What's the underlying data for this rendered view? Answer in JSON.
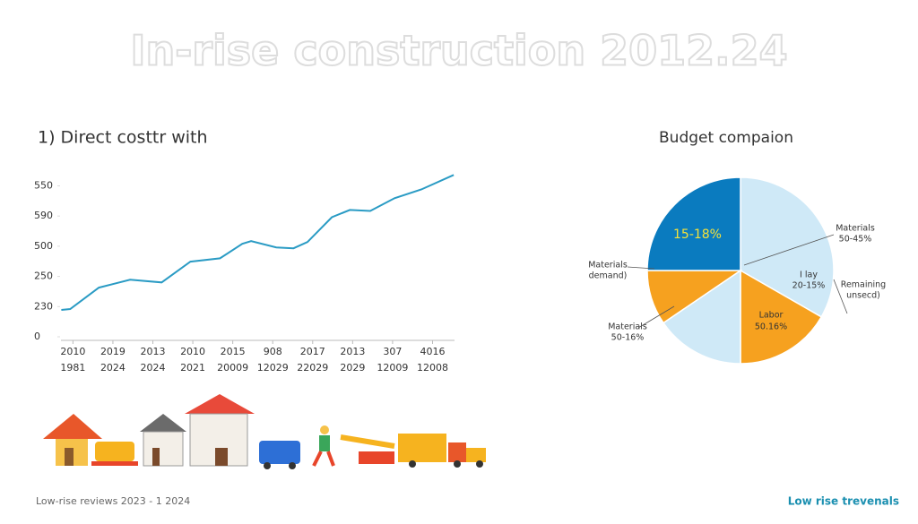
{
  "title": "In-rise construction 2012.24",
  "footer_left": "Low-rise reviews 2023 - 1 2024",
  "footer_right": "Low rise trevenals",
  "chart_data": [
    {
      "type": "line",
      "title": "1) Direct costtr with",
      "color": "#2a9bc4",
      "x": [
        -0.29,
        -0.07,
        0.65,
        1.43,
        2.22,
        2.94,
        3.68,
        4.24,
        4.46,
        5.09,
        5.52,
        5.87,
        6.48,
        6.93,
        7.44,
        8.05,
        8.72,
        9.53
      ],
      "values": [
        89,
        92,
        163,
        189,
        180,
        249,
        260,
        308,
        317,
        296,
        293,
        314,
        396,
        420,
        417,
        459,
        488,
        536
      ],
      "xlim": [
        -0.3,
        9.55
      ],
      "ylim": [
        0,
        540
      ],
      "xticks": [
        {
          "value": 0,
          "label": "2010",
          "label2": "1981"
        },
        {
          "value": 1,
          "label": "2019",
          "label2": "2024"
        },
        {
          "value": 2,
          "label": "2013",
          "label2": "2024"
        },
        {
          "value": 3,
          "label": "2010",
          "label2": "2021"
        },
        {
          "value": 4,
          "label": "2015",
          "label2": "20009"
        },
        {
          "value": 5,
          "label": "908",
          "label2": "12029"
        },
        {
          "value": 6,
          "label": "2017",
          "label2": "22029"
        },
        {
          "value": 7,
          "label": "2013",
          "label2": "2029"
        },
        {
          "value": 8,
          "label": "307",
          "label2": "12009"
        },
        {
          "value": 9,
          "label": "4016",
          "label2": "12008"
        }
      ],
      "yticks": [
        0,
        {
          "value": 100,
          "label": "230"
        },
        {
          "value": 200,
          "label": "250"
        },
        {
          "value": 300,
          "label": "500"
        },
        {
          "value": 400,
          "label": "590"
        },
        {
          "value": 500,
          "label": "550"
        }
      ]
    },
    {
      "type": "pie",
      "title": "Budget compaion",
      "values": [
        33.3,
        16.7,
        15.5,
        9.5,
        25
      ],
      "colors": [
        "#cfe9f7",
        "#f6a11f",
        "#cfe9f7",
        "#f6a11f",
        "#0a7bbf"
      ],
      "annotations": [
        [
          "15-18%"
        ],
        [
          "Labor",
          "50.16%"
        ],
        [
          "I lay",
          "20-15%"
        ],
        [
          "Materials",
          "50-45%"
        ],
        [
          "Materials",
          "demand)"
        ],
        [
          "Materials",
          "50-16%"
        ],
        [
          "Remaining",
          "unsecd)"
        ]
      ]
    }
  ]
}
